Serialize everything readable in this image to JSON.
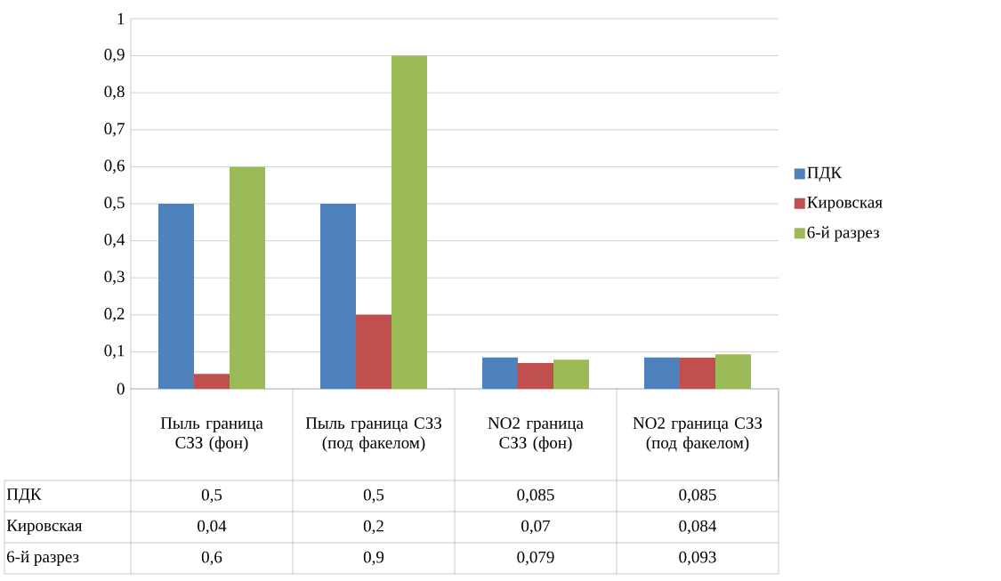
{
  "chart_data": {
    "type": "bar",
    "categories": [
      "Пыль граница СЗЗ (фон)",
      "Пыль граница СЗЗ (под факелом)",
      "NO2 граница СЗЗ (фон)",
      "NO2 граница СЗЗ (под факелом)"
    ],
    "series": [
      {
        "name": "ПДК",
        "color": "#4f81bd",
        "values": [
          0.5,
          0.5,
          0.085,
          0.085
        ],
        "value_labels": [
          "0,5",
          "0,5",
          "0,085",
          "0,085"
        ]
      },
      {
        "name": "Кировская",
        "color": "#c0504d",
        "values": [
          0.04,
          0.2,
          0.07,
          0.084
        ],
        "value_labels": [
          "0,04",
          "0,2",
          "0,07",
          "0,084"
        ]
      },
      {
        "name": "6-й разрез",
        "color": "#9bbb59",
        "values": [
          0.6,
          0.9,
          0.079,
          0.093
        ],
        "value_labels": [
          "0,6",
          "0,9",
          "0,079",
          "0,093"
        ]
      }
    ],
    "ylim": [
      0,
      1
    ],
    "yticks": [
      0,
      {
        "value": 0.1,
        "label": "0,1"
      },
      {
        "value": 0.2,
        "label": "0,2"
      },
      {
        "value": 0.3,
        "label": "0,3"
      },
      {
        "value": 0.4,
        "label": "0,4"
      },
      {
        "value": 0.5,
        "label": "0,5"
      },
      {
        "value": 0.6,
        "label": "0,6"
      },
      {
        "value": 0.7,
        "label": "0,7"
      },
      {
        "value": 0.8,
        "label": "0,8"
      },
      {
        "value": 0.9,
        "label": "0,9"
      },
      1
    ],
    "grid": "y",
    "legend": "right"
  }
}
